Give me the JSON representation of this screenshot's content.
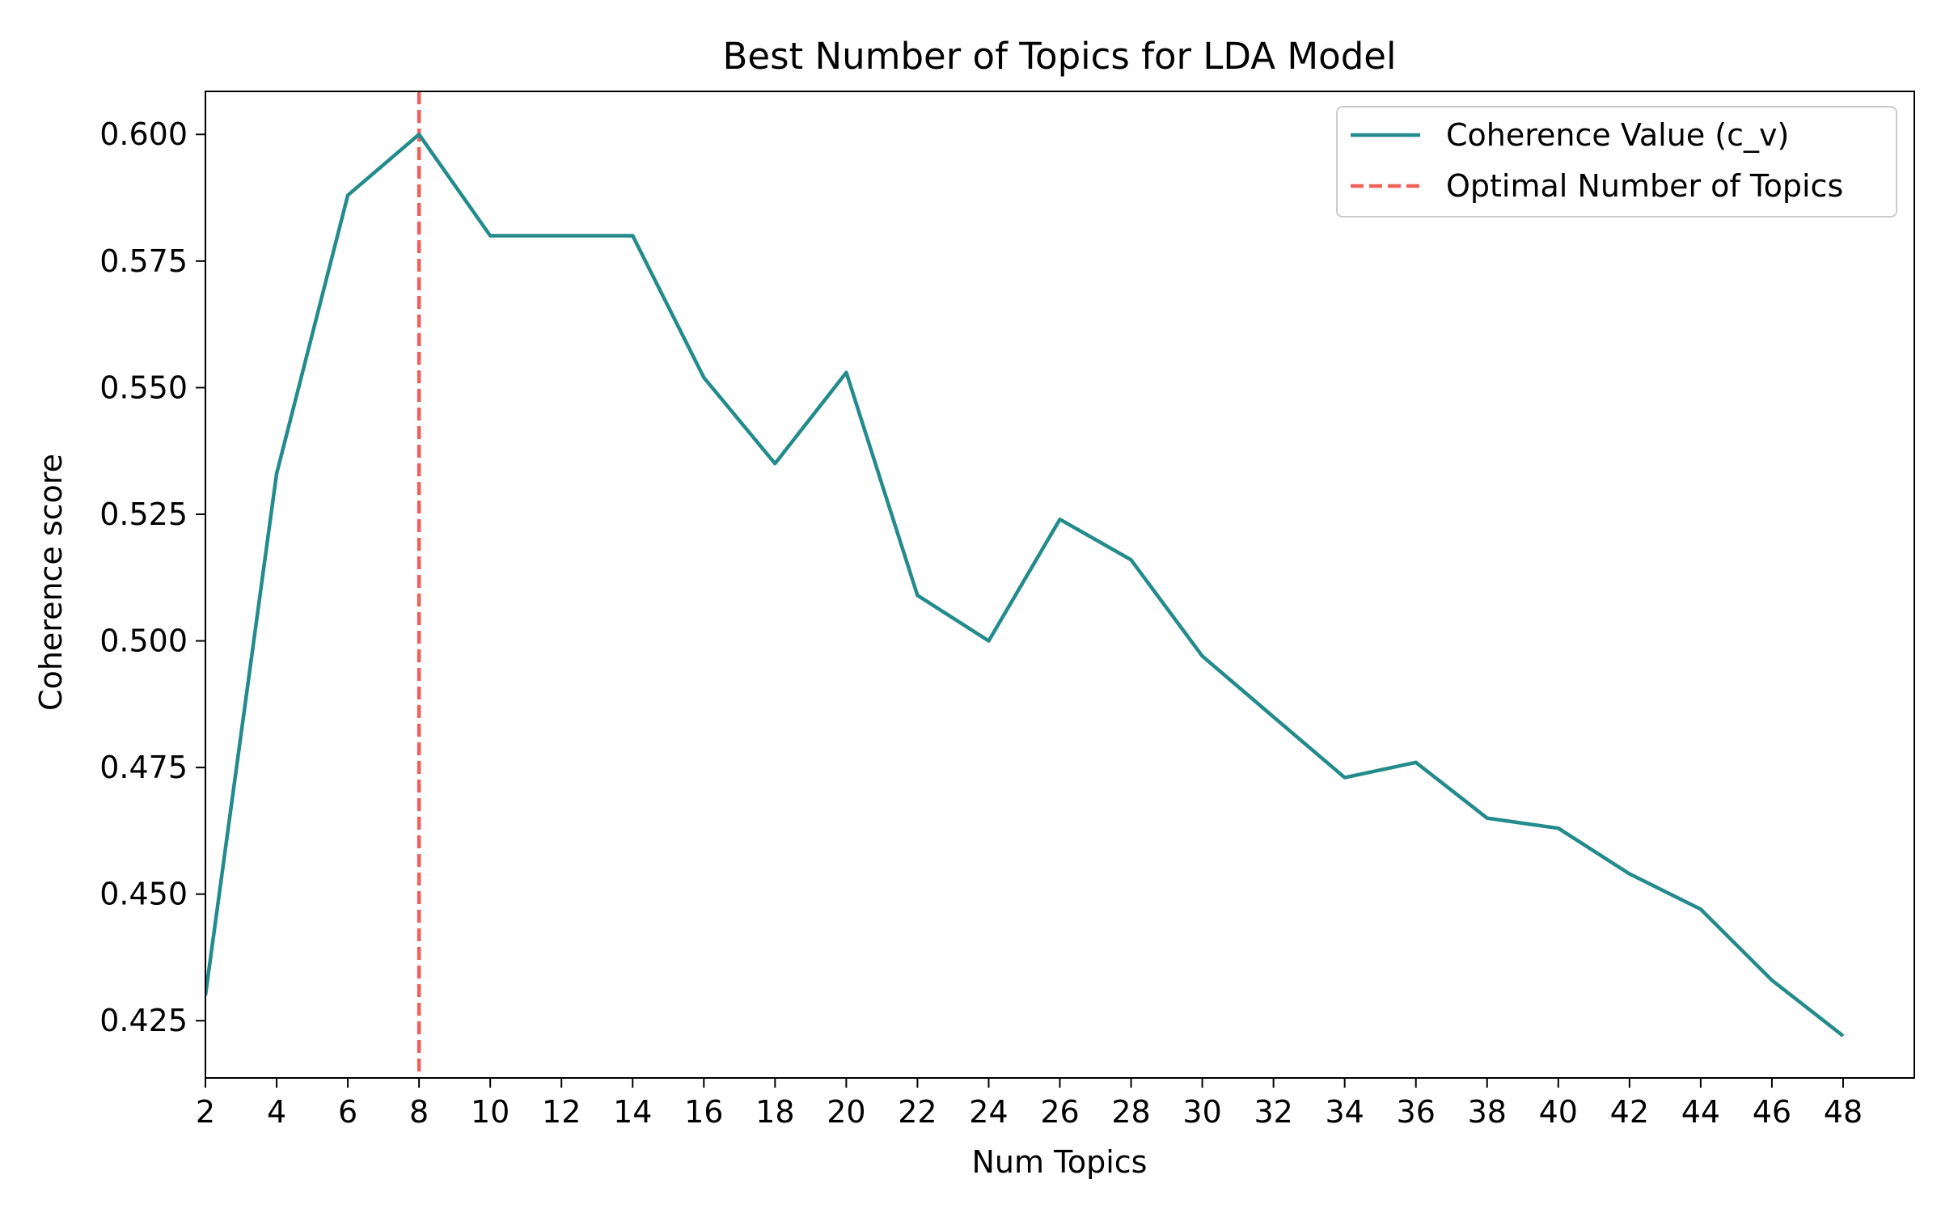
{
  "chart_data": {
    "type": "line",
    "title": "Best Number of Topics for LDA Model",
    "xlabel": "Num Topics",
    "ylabel": "Coherence score",
    "xlim": [
      2,
      50
    ],
    "ylim": [
      0.4137,
      0.6085
    ],
    "x_ticks": [
      2,
      4,
      6,
      8,
      10,
      12,
      14,
      16,
      18,
      20,
      22,
      24,
      26,
      28,
      30,
      32,
      34,
      36,
      38,
      40,
      42,
      44,
      46,
      48
    ],
    "y_ticks": [
      0.425,
      0.45,
      0.475,
      0.5,
      0.525,
      0.55,
      0.575,
      0.6
    ],
    "y_tick_labels": [
      "0.425",
      "0.450",
      "0.475",
      "0.500",
      "0.525",
      "0.550",
      "0.575",
      "0.600"
    ],
    "grid": false,
    "legend_position": "top-right",
    "series": [
      {
        "name": "Coherence Value (c_v)",
        "color": "#238b8b",
        "x": [
          2,
          4,
          6,
          8,
          10,
          12,
          14,
          16,
          18,
          20,
          22,
          24,
          26,
          28,
          30,
          32,
          34,
          36,
          38,
          40,
          42,
          44,
          46,
          48
        ],
        "values": [
          0.43,
          0.533,
          0.588,
          0.6,
          0.58,
          0.58,
          0.58,
          0.552,
          0.535,
          0.553,
          0.509,
          0.5,
          0.524,
          0.516,
          0.497,
          0.485,
          0.473,
          0.476,
          0.465,
          0.463,
          0.454,
          0.447,
          0.433,
          0.422
        ]
      }
    ],
    "reference_lines": [
      {
        "name": "Optimal Number of Topics",
        "axis": "x",
        "value": 8,
        "color": "#f0605a",
        "style": "dashed"
      }
    ]
  }
}
